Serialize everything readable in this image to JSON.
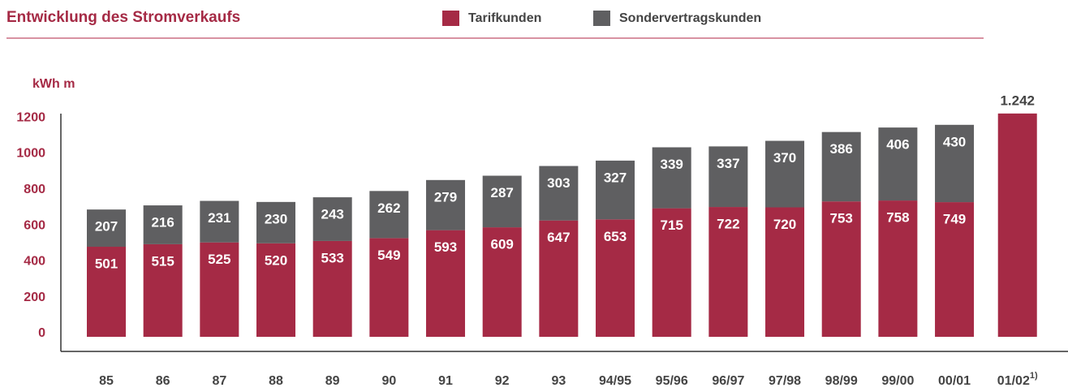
{
  "chart_data": {
    "type": "stacked_bar",
    "title": "Entwicklung des Stromverkaufs",
    "y_label": "kWh m",
    "categories": [
      "85",
      "86",
      "87",
      "88",
      "89",
      "90",
      "91",
      "92",
      "93",
      "94/95",
      "95/96",
      "96/97",
      "97/98",
      "98/99",
      "99/00",
      "00/01",
      "01/02"
    ],
    "category_footnote": {
      "index": 16,
      "marker": "1)"
    },
    "series": [
      {
        "name": "Tarifkunden",
        "color": "#a52a45",
        "values": [
          501,
          515,
          525,
          520,
          533,
          549,
          593,
          609,
          647,
          653,
          715,
          722,
          720,
          753,
          758,
          749,
          1242
        ],
        "value_labels": [
          "501",
          "515",
          "525",
          "520",
          "533",
          "549",
          "593",
          "609",
          "647",
          "653",
          "715",
          "722",
          "720",
          "753",
          "758",
          "749",
          "1.242"
        ]
      },
      {
        "name": "Sondervertragskunden",
        "color": "#5f5f61",
        "values": [
          207,
          216,
          231,
          230,
          243,
          262,
          279,
          287,
          303,
          327,
          339,
          337,
          370,
          386,
          406,
          430,
          null
        ]
      }
    ],
    "ylim": [
      0,
      1300
    ],
    "yticks": [
      0,
      200,
      400,
      600,
      800,
      1000,
      1200
    ],
    "legend": "top"
  }
}
